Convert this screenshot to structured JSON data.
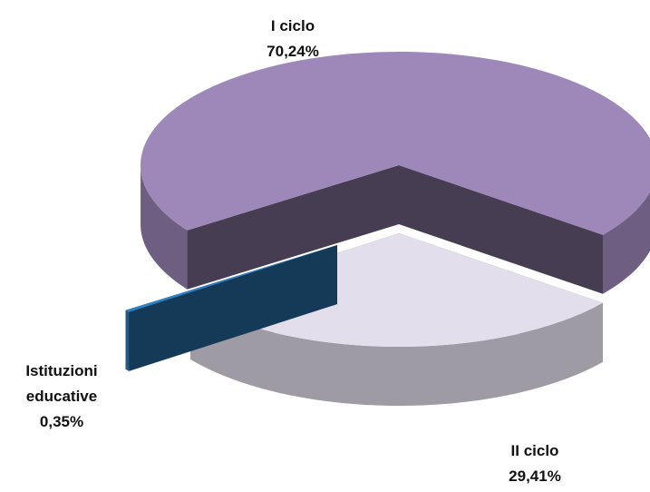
{
  "chart_data": {
    "type": "pie",
    "categories": [
      "I ciclo",
      "II ciclo",
      "Istituzioni educative"
    ],
    "values": [
      70.24,
      29.41,
      0.35
    ],
    "value_labels": [
      "70,24%",
      "29,41%",
      "0,35%"
    ],
    "colors": [
      "#9d88b9",
      "#e3deeb",
      "#2f80c2"
    ]
  }
}
